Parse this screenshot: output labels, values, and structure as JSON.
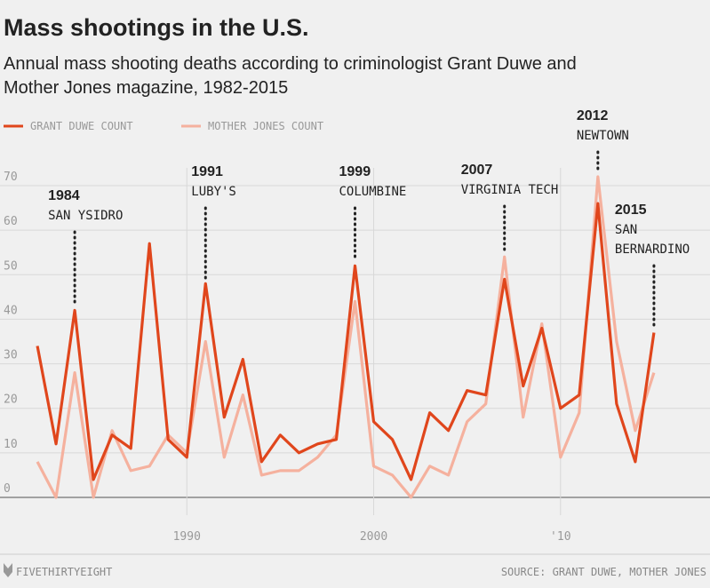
{
  "chart_data": {
    "type": "line",
    "title": "Mass shootings in the U.S.",
    "subtitle": [
      "Annual mass shooting deaths according to criminologist Grant Duwe and",
      "Mother Jones magazine, 1982-2015"
    ],
    "x": [
      1982,
      1983,
      1984,
      1985,
      1986,
      1987,
      1988,
      1989,
      1990,
      1991,
      1992,
      1993,
      1994,
      1995,
      1996,
      1997,
      1998,
      1999,
      2000,
      2001,
      2002,
      2003,
      2004,
      2005,
      2006,
      2007,
      2008,
      2009,
      2010,
      2011,
      2012,
      2013,
      2014,
      2015
    ],
    "series": [
      {
        "name": "GRANT DUWE COUNT",
        "color": "#e0461c",
        "values": [
          34,
          12,
          42,
          4,
          14,
          11,
          57,
          13,
          9,
          48,
          18,
          31,
          8,
          14,
          10,
          12,
          13,
          52,
          17,
          13,
          4,
          19,
          15,
          24,
          23,
          49,
          25,
          38,
          20,
          23,
          66,
          21,
          8,
          37
        ]
      },
      {
        "name": "MOTHER JONES COUNT",
        "color": "#f5b19e",
        "values": [
          8,
          0,
          28,
          0,
          15,
          6,
          7,
          14,
          10,
          35,
          9,
          23,
          5,
          6,
          6,
          9,
          14,
          44,
          7,
          5,
          0,
          7,
          5,
          17,
          21,
          54,
          18,
          39,
          9,
          19,
          72,
          35,
          15,
          28
        ]
      }
    ],
    "xlim": [
      1980,
      2018
    ],
    "xticks": [
      1990,
      2000,
      {
        "value": 2010,
        "label": "'10"
      }
    ],
    "ylim": [
      -4,
      74
    ],
    "yticks": [
      0,
      10,
      20,
      30,
      40,
      50,
      60,
      70
    ],
    "grid": true,
    "annotations": [
      {
        "year": "1984",
        "text": [
          "SAN YSIDRO"
        ]
      },
      {
        "year": "1991",
        "text": [
          "LUBY'S"
        ]
      },
      {
        "year": "1999",
        "text": [
          "COLUMBINE"
        ]
      },
      {
        "year": "2007",
        "text": [
          "VIRGINIA TECH"
        ]
      },
      {
        "year": "2012",
        "text": [
          "NEWTOWN"
        ]
      },
      {
        "year": "2015",
        "text": [
          "SAN",
          "BERNARDINO"
        ]
      }
    ],
    "footer": {
      "brand": "FIVETHIRTYEIGHT",
      "source": "SOURCE: GRANT DUWE, MOTHER JONES"
    }
  }
}
